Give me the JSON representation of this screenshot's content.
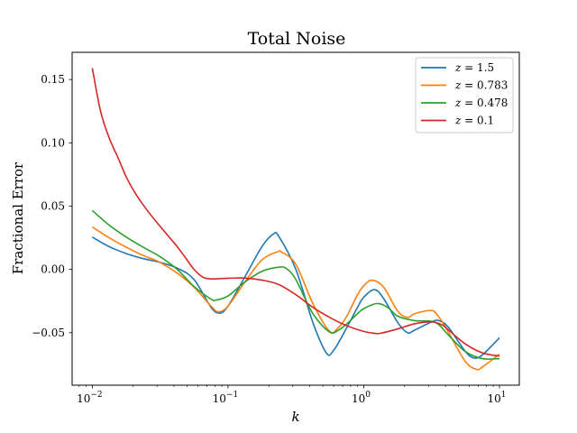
{
  "chart_data": {
    "type": "line",
    "title": "Total Noise",
    "xlabel": "k",
    "ylabel": "Fractional Error",
    "xscale": "log",
    "xlim": [
      0.0071,
      14.0
    ],
    "ylim": [
      -0.0915,
      0.1715
    ],
    "xticks": [
      {
        "value": 0.01,
        "base": "10",
        "exp": "−2"
      },
      {
        "value": 0.1,
        "base": "10",
        "exp": "−1"
      },
      {
        "value": 1,
        "base": "10",
        "exp": "0"
      },
      {
        "value": 10,
        "base": "10",
        "exp": "1"
      }
    ],
    "yticks": [
      {
        "value": 0.15,
        "label": "0.15"
      },
      {
        "value": 0.1,
        "label": "0.10"
      },
      {
        "value": 0.05,
        "label": "0.05"
      },
      {
        "value": 0.0,
        "label": "0.00"
      },
      {
        "value": -0.05,
        "label": "−0.05"
      }
    ],
    "grid": false,
    "legend": {
      "position": "top-right",
      "entries": [
        {
          "var": "z",
          "eq": " = 1.5"
        },
        {
          "var": "z",
          "eq": " = 0.783"
        },
        {
          "var": "z",
          "eq": " = 0.478"
        },
        {
          "var": "z",
          "eq": " = 0.1"
        }
      ]
    },
    "series": [
      {
        "color": "#1f77b4",
        "points": [
          [
            0.01,
            0.0255
          ],
          [
            0.0133,
            0.018
          ],
          [
            0.0178,
            0.0125
          ],
          [
            0.0237,
            0.0085
          ],
          [
            0.0316,
            0.0055
          ],
          [
            0.0422,
            0.001
          ],
          [
            0.0562,
            -0.008
          ],
          [
            0.075,
            -0.03
          ],
          [
            0.087,
            -0.0345
          ],
          [
            0.1,
            -0.029
          ],
          [
            0.133,
            -0.006
          ],
          [
            0.178,
            0.018
          ],
          [
            0.215,
            0.0278
          ],
          [
            0.237,
            0.026
          ],
          [
            0.316,
            0.0
          ],
          [
            0.422,
            -0.042
          ],
          [
            0.53,
            -0.066
          ],
          [
            0.6,
            -0.064
          ],
          [
            0.75,
            -0.046
          ],
          [
            0.9,
            -0.03
          ],
          [
            1.0,
            -0.022
          ],
          [
            1.2,
            -0.016
          ],
          [
            1.4,
            -0.023
          ],
          [
            1.78,
            -0.042
          ],
          [
            2.1,
            -0.05
          ],
          [
            2.37,
            -0.048
          ],
          [
            3.16,
            -0.0415
          ],
          [
            3.6,
            -0.0405
          ],
          [
            4.22,
            -0.046
          ],
          [
            5.62,
            -0.065
          ],
          [
            6.5,
            -0.07
          ],
          [
            7.5,
            -0.0675
          ],
          [
            10.0,
            -0.054
          ]
        ]
      },
      {
        "color": "#ff7f0e",
        "points": [
          [
            0.01,
            0.0335
          ],
          [
            0.0133,
            0.025
          ],
          [
            0.0178,
            0.0175
          ],
          [
            0.0237,
            0.011
          ],
          [
            0.0316,
            0.0055
          ],
          [
            0.0422,
            -0.003
          ],
          [
            0.0562,
            -0.014
          ],
          [
            0.075,
            -0.029
          ],
          [
            0.085,
            -0.0335
          ],
          [
            0.1,
            -0.029
          ],
          [
            0.133,
            -0.01
          ],
          [
            0.178,
            0.0075
          ],
          [
            0.23,
            0.0138
          ],
          [
            0.25,
            0.0135
          ],
          [
            0.316,
            0.004
          ],
          [
            0.422,
            -0.027
          ],
          [
            0.56,
            -0.049
          ],
          [
            0.65,
            -0.046
          ],
          [
            0.75,
            -0.037
          ],
          [
            0.9,
            -0.02
          ],
          [
            1.0,
            -0.013
          ],
          [
            1.15,
            -0.0085
          ],
          [
            1.4,
            -0.014
          ],
          [
            1.78,
            -0.033
          ],
          [
            2.1,
            -0.038
          ],
          [
            2.37,
            -0.035
          ],
          [
            3.16,
            -0.0325
          ],
          [
            3.6,
            -0.038
          ],
          [
            4.22,
            -0.05
          ],
          [
            5.62,
            -0.073
          ],
          [
            6.8,
            -0.079
          ],
          [
            7.5,
            -0.077
          ],
          [
            10.0,
            -0.067
          ]
        ]
      },
      {
        "color": "#2ca02c",
        "points": [
          [
            0.01,
            0.0465
          ],
          [
            0.0133,
            0.035
          ],
          [
            0.0178,
            0.0255
          ],
          [
            0.0237,
            0.0175
          ],
          [
            0.0316,
            0.01
          ],
          [
            0.0422,
            0.0
          ],
          [
            0.0562,
            -0.0135
          ],
          [
            0.075,
            -0.0235
          ],
          [
            0.082,
            -0.0242
          ],
          [
            0.1,
            -0.021
          ],
          [
            0.133,
            -0.01
          ],
          [
            0.178,
            -0.0015
          ],
          [
            0.24,
            0.0018
          ],
          [
            0.27,
            0.0005
          ],
          [
            0.316,
            -0.008
          ],
          [
            0.422,
            -0.035
          ],
          [
            0.56,
            -0.0495
          ],
          [
            0.65,
            -0.048
          ],
          [
            0.75,
            -0.043
          ],
          [
            0.9,
            -0.035
          ],
          [
            1.0,
            -0.031
          ],
          [
            1.25,
            -0.027
          ],
          [
            1.5,
            -0.03
          ],
          [
            1.78,
            -0.037
          ],
          [
            2.37,
            -0.0405
          ],
          [
            3.16,
            -0.041
          ],
          [
            3.6,
            -0.044
          ],
          [
            4.22,
            -0.052
          ],
          [
            5.62,
            -0.065
          ],
          [
            7.5,
            -0.0705
          ],
          [
            10.0,
            -0.0705
          ]
        ]
      },
      {
        "color": "#d62728",
        "points": [
          [
            0.01,
            0.159
          ],
          [
            0.0115,
            0.125
          ],
          [
            0.0133,
            0.104
          ],
          [
            0.0155,
            0.088
          ],
          [
            0.0178,
            0.073
          ],
          [
            0.0205,
            0.061
          ],
          [
            0.0237,
            0.051
          ],
          [
            0.0274,
            0.042
          ],
          [
            0.0316,
            0.034
          ],
          [
            0.0365,
            0.026
          ],
          [
            0.0422,
            0.018
          ],
          [
            0.0487,
            0.009
          ],
          [
            0.0562,
            0.0
          ],
          [
            0.065,
            -0.006
          ],
          [
            0.075,
            -0.0075
          ],
          [
            0.1,
            -0.007
          ],
          [
            0.133,
            -0.0068
          ],
          [
            0.178,
            -0.0085
          ],
          [
            0.237,
            -0.012
          ],
          [
            0.316,
            -0.02
          ],
          [
            0.422,
            -0.03
          ],
          [
            0.562,
            -0.038
          ],
          [
            0.75,
            -0.0445
          ],
          [
            1.0,
            -0.049
          ],
          [
            1.2,
            -0.0505
          ],
          [
            1.33,
            -0.0505
          ],
          [
            1.78,
            -0.047
          ],
          [
            2.37,
            -0.043
          ],
          [
            3.16,
            -0.0415
          ],
          [
            3.8,
            -0.044
          ],
          [
            4.22,
            -0.048
          ],
          [
            5.62,
            -0.059
          ],
          [
            7.5,
            -0.066
          ],
          [
            10.0,
            -0.0685
          ]
        ]
      }
    ]
  }
}
